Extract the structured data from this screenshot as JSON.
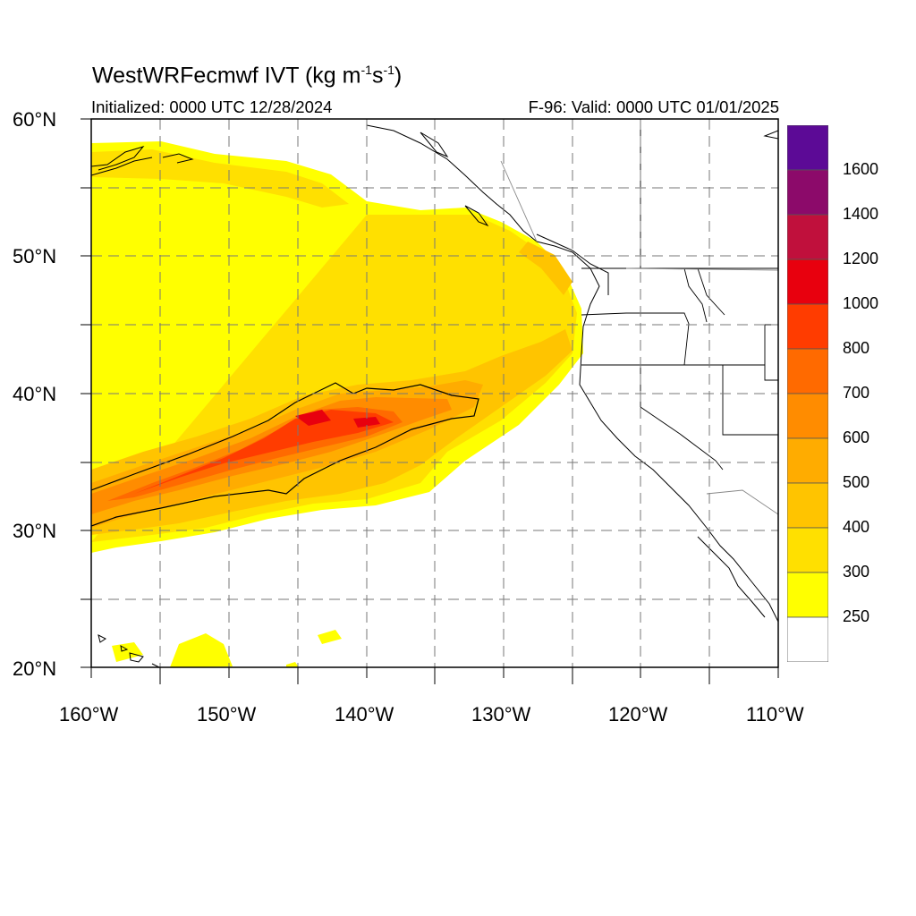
{
  "title": {
    "model": "WestWRFecmwf IVT (kg m",
    "unit_exp1": "-1",
    "unit_mid": "s",
    "unit_exp2": "-1",
    "close": ")"
  },
  "initialized": "Initialized: 0000 UTC 12/28/2024",
  "valid": "F-96: Valid: 0000 UTC 01/01/2025",
  "lat_labels": [
    "60°N",
    "50°N",
    "40°N",
    "30°N",
    "20°N"
  ],
  "lon_labels": [
    "160°W",
    "150°W",
    "140°W",
    "130°W",
    "120°W",
    "110°W"
  ],
  "colorbar": {
    "labels": [
      "1600",
      "1400",
      "1200",
      "1000",
      "800",
      "700",
      "600",
      "500",
      "400",
      "300",
      "250"
    ],
    "colors": [
      "#5c0a96",
      "#8c0a6a",
      "#c0103c",
      "#e8000e",
      "#ff3c00",
      "#ff6a00",
      "#ff8c00",
      "#ffac00",
      "#ffc400",
      "#ffe000",
      "#ffff00",
      "#ffffff"
    ]
  },
  "colors": {
    "ivt_250": "#ffff00",
    "ivt_300": "#ffe000",
    "ivt_400": "#ffc400",
    "ivt_500": "#ffac00",
    "ivt_600": "#ff8c00",
    "ivt_700": "#ff6a00",
    "ivt_800": "#ff3c00",
    "ivt_1000": "#e8000e"
  }
}
